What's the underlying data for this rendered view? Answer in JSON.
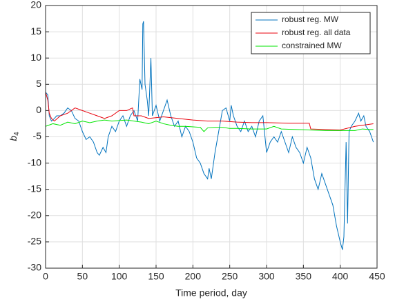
{
  "chart_data": {
    "type": "line",
    "xlabel": "Time period, day",
    "ylabel": "b",
    "ylabel_subscript": "4",
    "xlim": [
      0,
      450
    ],
    "ylim": [
      -30,
      20
    ],
    "xticks": [
      0,
      50,
      100,
      150,
      200,
      250,
      300,
      350,
      400,
      450
    ],
    "yticks": [
      -30,
      -25,
      -20,
      -15,
      -10,
      -5,
      0,
      5,
      10,
      15,
      20
    ],
    "grid": true,
    "legend": "northeast",
    "series": [
      {
        "name": "robust reg. MW",
        "color": "#0072bd",
        "x": [
          0,
          3,
          5,
          8,
          12,
          15,
          20,
          25,
          30,
          35,
          40,
          45,
          50,
          55,
          60,
          65,
          70,
          73,
          78,
          82,
          85,
          90,
          95,
          100,
          105,
          110,
          115,
          120,
          125,
          128,
          131,
          132,
          133,
          135,
          138,
          140,
          143,
          145,
          150,
          155,
          160,
          165,
          170,
          175,
          180,
          185,
          190,
          195,
          200,
          205,
          210,
          215,
          220,
          222,
          225,
          230,
          235,
          240,
          245,
          250,
          252,
          255,
          260,
          265,
          270,
          275,
          280,
          285,
          290,
          295,
          300,
          305,
          310,
          315,
          320,
          325,
          330,
          335,
          340,
          345,
          350,
          355,
          360,
          365,
          370,
          375,
          380,
          385,
          390,
          395,
          400,
          403,
          405,
          408,
          410,
          412,
          415,
          420,
          425,
          428,
          432,
          435,
          440,
          445
        ],
        "values": [
          3.5,
          3,
          -1,
          -2,
          -1.5,
          -1,
          -1,
          -0.5,
          0.5,
          0,
          -1.5,
          -2,
          -4,
          -5.5,
          -5,
          -6,
          -8,
          -8.5,
          -7,
          -8,
          -5,
          -3,
          -4,
          -2,
          -1,
          -3,
          -1,
          0,
          -2,
          6,
          4,
          16.5,
          17,
          5,
          2,
          -1,
          10,
          -1,
          1,
          -2,
          0,
          2,
          -1,
          -3,
          -2,
          -5,
          -3,
          -4,
          -6,
          -9,
          -10,
          -12,
          -13,
          -11,
          -13,
          -8,
          -4,
          0,
          0.5,
          -2,
          1,
          -1,
          -3,
          -4,
          -2,
          -4,
          -3,
          -5,
          -2,
          -1,
          -8,
          -6,
          -5,
          -6,
          -4,
          -6,
          -8,
          -5,
          -7,
          -8,
          -10,
          -7,
          -9,
          -13,
          -15,
          -12,
          -14,
          -16,
          -18,
          -22,
          -25,
          -26.5,
          -24,
          -6,
          -21.5,
          -4,
          -3,
          -2,
          -0.5,
          -2,
          -1,
          -3,
          -4,
          -6
        ]
      },
      {
        "name": "robust reg. all data",
        "color": "#e8000b",
        "x": [
          0,
          3,
          5,
          8,
          12,
          20,
          30,
          40,
          50,
          60,
          70,
          80,
          90,
          100,
          110,
          118,
          120,
          130,
          140,
          160,
          180,
          200,
          220,
          240,
          260,
          280,
          300,
          330,
          358,
          360,
          380,
          400,
          420,
          445
        ],
        "values": [
          3.5,
          2,
          -0.5,
          -1.5,
          -2,
          -1,
          -0.5,
          0.5,
          0,
          -0.5,
          -1,
          -1.5,
          -1,
          0,
          0,
          0.5,
          -1,
          -1,
          -1.5,
          -1.2,
          -1.5,
          -1.8,
          -2,
          -2,
          -2.2,
          -2.3,
          -2.3,
          -2.4,
          -2.4,
          -3.5,
          -3.6,
          -3.7,
          -3,
          -2.5
        ]
      },
      {
        "name": "constrained MW",
        "color": "#00e600",
        "x": [
          0,
          10,
          20,
          30,
          40,
          50,
          60,
          70,
          80,
          90,
          100,
          110,
          120,
          130,
          140,
          150,
          160,
          170,
          180,
          190,
          200,
          210,
          215,
          220,
          230,
          240,
          250,
          260,
          280,
          300,
          310,
          320,
          340,
          360,
          380,
          400,
          420,
          430,
          440,
          445
        ],
        "values": [
          -3,
          -2.5,
          -2.8,
          -2.2,
          -2.5,
          -2,
          -2.3,
          -2,
          -1.8,
          -2,
          -1.9,
          -1.8,
          -2,
          -2.2,
          -2.5,
          -2,
          -2.5,
          -2.8,
          -3,
          -3,
          -3.1,
          -3.2,
          -4,
          -3.3,
          -3.2,
          -3.2,
          -3.4,
          -3.4,
          -3.5,
          -3.5,
          -3,
          -3.5,
          -3.6,
          -3.7,
          -3.8,
          -3.8,
          -3.8,
          -3.5,
          -3.6,
          -3.6
        ]
      }
    ]
  }
}
